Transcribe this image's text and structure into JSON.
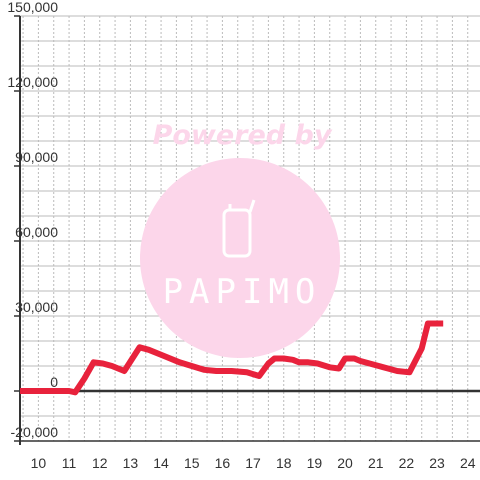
{
  "watermark": {
    "text": "Powered by",
    "brand": "PAPIMO",
    "color": "#fcd6ea",
    "logo_icon": "phone-icon"
  },
  "chart_data": {
    "type": "line",
    "title": "",
    "xlabel": "",
    "ylabel": "",
    "xlim": [
      9.4,
      24.4
    ],
    "ylim": [
      -20000,
      150000
    ],
    "x_ticks": [
      10,
      11,
      12,
      13,
      14,
      15,
      16,
      17,
      18,
      19,
      20,
      21,
      22,
      23,
      24
    ],
    "y_ticks": [
      -20000,
      0,
      30000,
      60000,
      90000,
      120000,
      150000
    ],
    "y_tick_labels": [
      "-20,000",
      "0",
      "30,000",
      "60,000",
      "90,000",
      "120,000",
      "150,000"
    ],
    "grid": true,
    "legend": "none",
    "colors": {
      "line": "#e8223c",
      "zero_line": "#333333",
      "grid": "#bbbbbb",
      "axis": "#333333"
    },
    "series": [
      {
        "values_x": [
          9.4,
          10,
          10.5,
          11,
          11.2,
          11.5,
          11.8,
          12.1,
          12.4,
          12.8,
          13.3,
          13.6,
          14.1,
          14.6,
          15.0,
          15.4,
          15.8,
          16.3,
          16.8,
          17.2,
          17.5,
          17.7,
          18.0,
          18.3,
          18.5,
          18.8,
          19.1,
          19.5,
          19.8,
          20.0,
          20.3,
          20.5,
          20.8,
          21.1,
          21.4,
          21.7,
          22.1,
          22.5,
          22.7,
          23.0,
          23.2
        ],
        "values_y": [
          0,
          0,
          0,
          0,
          -500,
          5000,
          11500,
          11000,
          10000,
          8000,
          17500,
          16500,
          14000,
          11500,
          10000,
          8500,
          8000,
          8000,
          7500,
          6000,
          11000,
          13000,
          13000,
          12500,
          11500,
          11500,
          11000,
          9500,
          9000,
          13000,
          13000,
          12000,
          11000,
          10000,
          9000,
          8000,
          7500,
          17000,
          27000,
          27000,
          27000
        ]
      }
    ]
  }
}
